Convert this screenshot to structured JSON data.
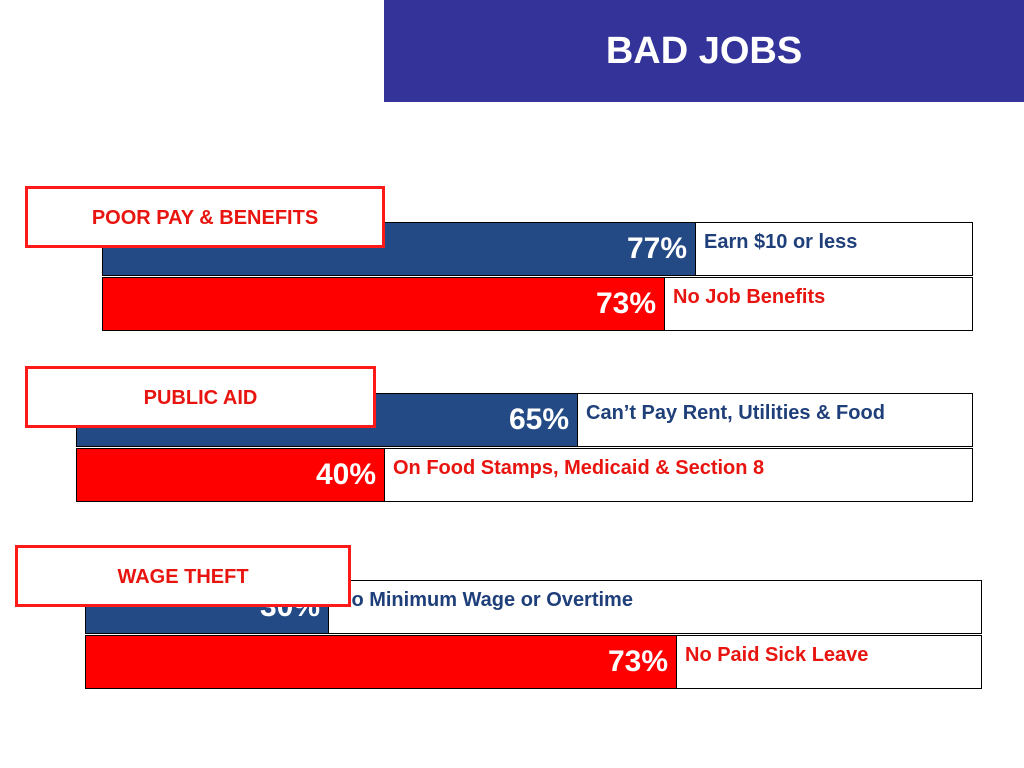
{
  "title": "BAD JOBS",
  "colors": {
    "title_bg": "#33339a",
    "blue_bar": "#244a86",
    "red_bar": "#ff0000",
    "blue_text": "#1f3f7a",
    "red_text": "#e8140f",
    "category_border": "#ff1a1a"
  },
  "chart_data": {
    "type": "bar",
    "orientation": "horizontal",
    "unit": "%",
    "groups": [
      {
        "category": "POOR PAY & BENEFITS",
        "bars": [
          {
            "value": 77,
            "label": "77%",
            "description": "Earn $10 or less",
            "color": "#244a86"
          },
          {
            "value": 73,
            "label": "73%",
            "description": "No Job Benefits",
            "color": "#ff0000"
          }
        ]
      },
      {
        "category": "PUBLIC AID",
        "bars": [
          {
            "value": 65,
            "label": "65%",
            "description": "Can’t Pay Rent, Utilities & Food",
            "color": "#244a86"
          },
          {
            "value": 40,
            "label": "40%",
            "description": "On Food Stamps, Medicaid & Section 8",
            "color": "#ff0000"
          }
        ]
      },
      {
        "category": "WAGE THEFT",
        "bars": [
          {
            "value": 30,
            "label": "30%",
            "description": "No Minimum Wage or Overtime",
            "color": "#244a86"
          },
          {
            "value": 73,
            "label": "73%",
            "description": "No Paid Sick Leave",
            "color": "#ff0000"
          }
        ]
      }
    ]
  }
}
